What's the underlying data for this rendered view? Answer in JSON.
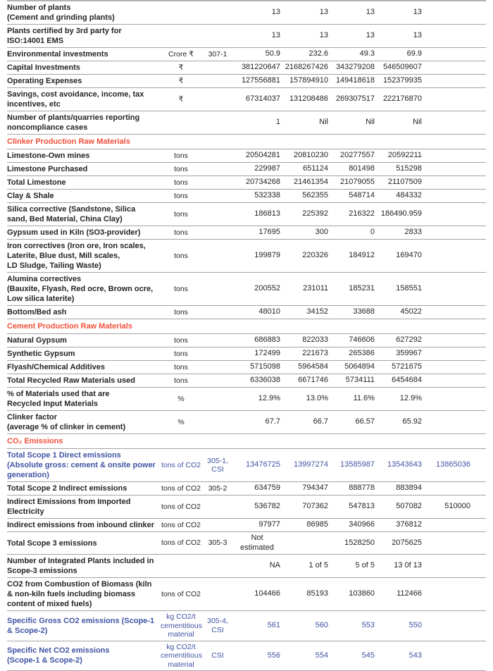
{
  "colors": {
    "section_red": "#f1503a",
    "highlight_blue": "#4053a4",
    "text": "#242424",
    "separator": "#a3a3a3"
  },
  "table": {
    "rows": [
      {
        "kind": "row",
        "label": "Number of plants\n(Cement and grinding plants)",
        "unit": "",
        "code": "",
        "blue": false,
        "values": [
          "13",
          "13",
          "13",
          "13",
          ""
        ]
      },
      {
        "kind": "row",
        "label": "Plants certified by 3rd party for\nISO:14001 EMS",
        "unit": "",
        "code": "",
        "blue": false,
        "values": [
          "13",
          "13",
          "13",
          "13",
          ""
        ]
      },
      {
        "kind": "row",
        "label": "Environmental investments",
        "unit": "Crore ₹",
        "code": "307-1",
        "blue": false,
        "values": [
          "50.9",
          "232.6",
          "49.3",
          "69.9",
          ""
        ]
      },
      {
        "kind": "row",
        "label": "Capital Investments",
        "unit": "₹",
        "code": "",
        "blue": false,
        "values": [
          "381220647",
          "2168267426",
          "343279208",
          "546509607",
          ""
        ]
      },
      {
        "kind": "row",
        "label": "Operating Expenses",
        "unit": "₹",
        "code": "",
        "blue": false,
        "values": [
          "127556881",
          "157894910",
          "149418618",
          "152379935",
          ""
        ]
      },
      {
        "kind": "row",
        "label": "Savings, cost avoidance, income, tax\nincentives, etc",
        "unit": "₹",
        "code": "",
        "blue": false,
        "values": [
          "67314037",
          "131208486",
          "269307517",
          "222176870",
          ""
        ]
      },
      {
        "kind": "row",
        "label": "Number of plants/quarries reporting\nnoncompliance cases",
        "unit": "",
        "code": "",
        "blue": false,
        "values": [
          "1",
          "Nil",
          "Nil",
          "Nil",
          ""
        ]
      },
      {
        "kind": "section",
        "label": "Clinker Production Raw Materials"
      },
      {
        "kind": "row",
        "label": "Limestone-Own mines",
        "unit": "tons",
        "code": "",
        "blue": false,
        "values": [
          "20504281",
          "20810230",
          "20277557",
          "20592211",
          ""
        ]
      },
      {
        "kind": "row",
        "label": "Limestone Purchased",
        "unit": "tons",
        "code": "",
        "blue": false,
        "values": [
          "229987",
          "651124",
          "801498",
          "515298",
          ""
        ]
      },
      {
        "kind": "row",
        "label": "Total Limestone",
        "unit": "tons",
        "code": "",
        "blue": false,
        "values": [
          "20734268",
          "21461354",
          "21079055",
          "21107509",
          ""
        ]
      },
      {
        "kind": "row",
        "label": "Clay & Shale",
        "unit": "tons",
        "code": "",
        "blue": false,
        "values": [
          "532338",
          "562355",
          "548714",
          "484332",
          ""
        ]
      },
      {
        "kind": "row",
        "label": "Silica corrective (Sandstone, Silica\nsand, Bed Material, China Clay)",
        "unit": "tons",
        "code": "",
        "blue": false,
        "values": [
          "186813",
          "225392",
          "216322",
          "186490.959",
          ""
        ]
      },
      {
        "kind": "row",
        "label": "Gypsum used in Kiln (SO3-provider)",
        "unit": "tons",
        "code": "",
        "blue": false,
        "values": [
          "17695",
          "300",
          "0",
          "2833",
          ""
        ]
      },
      {
        "kind": "row",
        "label": "Iron correctives (Iron ore, Iron scales,\nLaterite, Blue dust, Mill scales,\nLD Sludge, Tailing Waste)",
        "unit": "tons",
        "code": "",
        "blue": false,
        "values": [
          "199879",
          "220326",
          "184912",
          "169470",
          ""
        ]
      },
      {
        "kind": "row",
        "label": "Alumina correctives\n(Bauxite, Flyash, Red ocre, Brown ocre,\nLow silica laterite)",
        "unit": "tons",
        "code": "",
        "blue": false,
        "values": [
          "200552",
          "231011",
          "185231",
          "158551",
          ""
        ]
      },
      {
        "kind": "row",
        "label": "Bottom/Bed ash",
        "unit": "tons",
        "code": "",
        "blue": false,
        "values": [
          "48010",
          "34152",
          "33688",
          "45022",
          ""
        ]
      },
      {
        "kind": "section",
        "label": "Cement Production Raw Materials"
      },
      {
        "kind": "row",
        "label": "Natural Gypsum",
        "unit": "tons",
        "code": "",
        "blue": false,
        "values": [
          "686883",
          "822033",
          "746606",
          "627292",
          ""
        ]
      },
      {
        "kind": "row",
        "label": "Synthetic Gypsum",
        "unit": "tons",
        "code": "",
        "blue": false,
        "values": [
          "172499",
          "221673",
          "265386",
          "359967",
          ""
        ]
      },
      {
        "kind": "row",
        "label": "Flyash/Chemical Additives",
        "unit": "tons",
        "code": "",
        "blue": false,
        "values": [
          "5715098",
          "5964584",
          "5064894",
          "5721675",
          ""
        ]
      },
      {
        "kind": "row",
        "label": "Total Recycled Raw Materials used",
        "unit": "tons",
        "code": "",
        "blue": false,
        "values": [
          "6336038",
          "6671746",
          "5734111",
          "6454684",
          ""
        ]
      },
      {
        "kind": "row",
        "label": "% of Materials used that are\nRecycled Input Materials",
        "unit": "%",
        "code": "",
        "blue": false,
        "values": [
          "12.9%",
          "13.0%",
          "11.6%",
          "12.9%",
          ""
        ]
      },
      {
        "kind": "row",
        "label": "Clinker factor\n(average % of clinker in cement)",
        "unit": "%",
        "code": "",
        "blue": false,
        "values": [
          "67.7",
          "66.7",
          "66.57",
          "65.92",
          ""
        ]
      },
      {
        "kind": "section",
        "label": "CO₂ Emissions"
      },
      {
        "kind": "row",
        "label": "Total Scope 1 Direct emissions\n(Absolute gross: cement & onsite power\ngeneration)",
        "unit": "tons of CO2",
        "code": "305-1,\nCSI",
        "blue": true,
        "values": [
          "13476725",
          "13997274",
          "13585987",
          "13543643",
          "13865036"
        ]
      },
      {
        "kind": "row",
        "label": "Total Scope 2 Indirect emissions",
        "unit": "tons of CO2",
        "code": "305-2",
        "blue": false,
        "values": [
          "634759",
          "794347",
          "888778",
          "883894",
          ""
        ]
      },
      {
        "kind": "row",
        "label": "Indirect Emissions from Imported\nElectricity",
        "unit": "tons of CO2",
        "code": "",
        "blue": false,
        "values": [
          "536782",
          "707362",
          "547813",
          "507082",
          "510000"
        ]
      },
      {
        "kind": "row",
        "label": "Indirect emissions from inbound clinker",
        "unit": "tons of CO2",
        "code": "",
        "blue": false,
        "values": [
          "97977",
          "86985",
          "340966",
          "376812",
          ""
        ]
      },
      {
        "kind": "row",
        "label": "Total Scope 3 emissions",
        "unit": "tons of CO2",
        "code": "305-3",
        "blue": false,
        "values": [
          "Not\nestimated",
          "",
          "1528250",
          "2075625",
          ""
        ]
      },
      {
        "kind": "row",
        "label": "Number of Integrated Plants included in\nScope-3 emissions",
        "unit": "",
        "code": "",
        "blue": false,
        "values": [
          "NA",
          "1 of 5",
          "5 of 5",
          "13 0f 13",
          ""
        ]
      },
      {
        "kind": "row",
        "label": "CO2 from Combustion of Biomass (kiln\n& non-kiln fuels including biomass\ncontent of mixed fuels)",
        "unit": "tons of CO2",
        "code": "",
        "blue": false,
        "values": [
          "104466",
          "85193",
          "103860",
          "112466",
          ""
        ]
      },
      {
        "kind": "row",
        "label": "Specific Gross CO2 emissions (Scope-1\n& Scope-2)",
        "unit": "kg CO2/t\ncementitious\nmaterial",
        "code": "305-4,\nCSI",
        "blue": true,
        "values": [
          "561",
          "560",
          "553",
          "550",
          ""
        ]
      },
      {
        "kind": "row",
        "label": "Specific Net CO2 emissions\n(Scope-1 & Scope-2)",
        "unit": "kg CO2/t\ncementitious\nmaterial",
        "code": "CSI",
        "blue": true,
        "values": [
          "556",
          "554",
          "545",
          "543",
          ""
        ]
      }
    ]
  }
}
